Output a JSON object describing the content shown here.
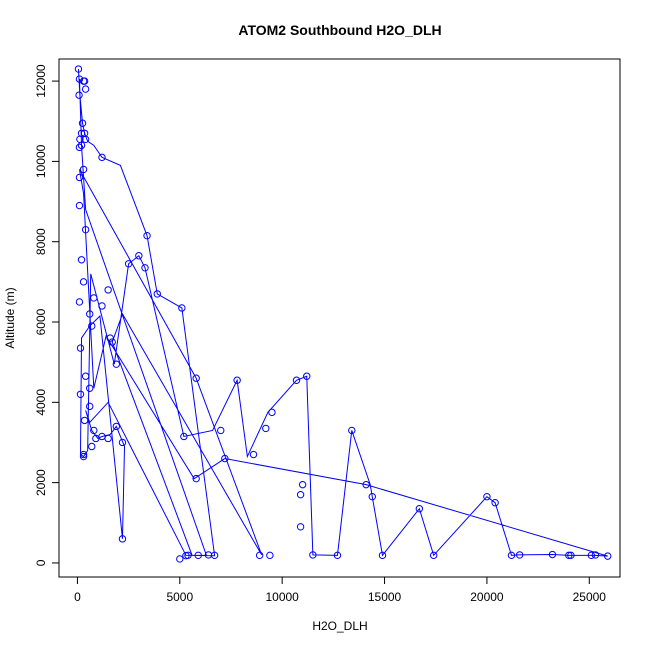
{
  "chart_data": {
    "type": "line",
    "title": "ATOM2 Southbound H2O_DLH",
    "xlabel": "H2O_DLH",
    "ylabel": "Altitude (m)",
    "xlim": [
      -900,
      26500
    ],
    "ylim": [
      -350,
      12550
    ],
    "xticks": [
      0,
      5000,
      10000,
      15000,
      20000,
      25000
    ],
    "yticks": [
      0,
      2000,
      4000,
      6000,
      8000,
      10000,
      12000
    ],
    "grid": false,
    "series": [
      {
        "color": "#0000ff",
        "markers": "open-circle",
        "x": [
          50,
          120,
          250,
          350,
          500,
          800,
          1200,
          2100,
          3400,
          3900,
          5100,
          6700,
          5300,
          1500,
          600,
          400,
          700,
          1000,
          1200,
          1600,
          1900,
          2300,
          2200,
          1100,
          900,
          600,
          200,
          150,
          300,
          500,
          650,
          1800,
          2500,
          3000,
          3300,
          5200,
          6600,
          7800,
          8300,
          9300,
          10700,
          11200,
          11500,
          12700,
          13400,
          14300,
          14400,
          14900,
          16700,
          17400,
          20000,
          20400,
          21200,
          21500,
          23200,
          24000,
          24100,
          25100,
          25300,
          25900,
          14100,
          7200,
          5700,
          1400,
          800,
          300,
          100,
          5800,
          9000,
          2200,
          1700,
          5600,
          6300,
          400,
          200,
          100
        ],
        "y": [
          12300,
          11650,
          10950,
          10700,
          10500,
          10400,
          10100,
          9900,
          8150,
          6700,
          6350,
          180,
          190,
          4000,
          3500,
          3800,
          3300,
          3100,
          3150,
          3200,
          3400,
          2900,
          600,
          6150,
          6050,
          5900,
          5600,
          2700,
          2650,
          2800,
          7200,
          4950,
          7450,
          7650,
          7350,
          3150,
          3300,
          4550,
          2650,
          3750,
          4550,
          4650,
          200,
          190,
          3300,
          1950,
          1650,
          190,
          1350,
          190,
          1650,
          1500,
          190,
          200,
          210,
          190,
          190,
          190,
          190,
          170,
          1950,
          2600,
          2100,
          5650,
          4350,
          9200,
          9800,
          4600,
          200,
          6200,
          5500,
          190,
          190,
          8800,
          10400,
          12050
        ],
        "points": [
          [
            50,
            12300
          ],
          [
            100,
            12050
          ],
          [
            300,
            12000
          ],
          [
            350,
            12000
          ],
          [
            80,
            11650
          ],
          [
            400,
            11800
          ],
          [
            250,
            10950
          ],
          [
            200,
            10700
          ],
          [
            350,
            10700
          ],
          [
            120,
            10550
          ],
          [
            400,
            10550
          ],
          [
            200,
            10400
          ],
          [
            100,
            10350
          ],
          [
            1200,
            10100
          ],
          [
            300,
            9800
          ],
          [
            100,
            9600
          ],
          [
            3400,
            8150
          ],
          [
            2500,
            7450
          ],
          [
            3000,
            7650
          ],
          [
            3300,
            7350
          ],
          [
            3900,
            6700
          ],
          [
            5100,
            6350
          ],
          [
            1200,
            6400
          ],
          [
            1500,
            6800
          ],
          [
            800,
            6600
          ],
          [
            600,
            6200
          ],
          [
            700,
            5900
          ],
          [
            1600,
            5600
          ],
          [
            1700,
            5500
          ],
          [
            1900,
            4950
          ],
          [
            5800,
            4600
          ],
          [
            7800,
            4550
          ],
          [
            10700,
            4550
          ],
          [
            11200,
            4650
          ],
          [
            9500,
            3750
          ],
          [
            9200,
            3350
          ],
          [
            7000,
            3300
          ],
          [
            5200,
            3150
          ],
          [
            13400,
            3300
          ],
          [
            7200,
            2600
          ],
          [
            8600,
            2700
          ],
          [
            5800,
            2100
          ],
          [
            14100,
            1950
          ],
          [
            14400,
            1650
          ],
          [
            10900,
            1700
          ],
          [
            11000,
            1950
          ],
          [
            16700,
            1350
          ],
          [
            20000,
            1650
          ],
          [
            20400,
            1500
          ],
          [
            10900,
            900
          ],
          [
            2200,
            600
          ],
          [
            1900,
            3400
          ],
          [
            2200,
            3000
          ],
          [
            1500,
            3100
          ],
          [
            1200,
            3150
          ],
          [
            800,
            3300
          ],
          [
            900,
            3100
          ],
          [
            700,
            2900
          ],
          [
            300,
            2700
          ],
          [
            300,
            2650
          ],
          [
            350,
            3550
          ],
          [
            600,
            3900
          ],
          [
            150,
            4200
          ],
          [
            600,
            4350
          ],
          [
            400,
            4650
          ],
          [
            150,
            5350
          ],
          [
            100,
            6500
          ],
          [
            300,
            7000
          ],
          [
            200,
            7550
          ],
          [
            400,
            8300
          ],
          [
            100,
            8900
          ],
          [
            5000,
            100
          ],
          [
            5300,
            180
          ],
          [
            5400,
            190
          ],
          [
            5900,
            190
          ],
          [
            6400,
            200
          ],
          [
            6700,
            190
          ],
          [
            8900,
            190
          ],
          [
            9400,
            190
          ],
          [
            11500,
            200
          ],
          [
            12700,
            190
          ],
          [
            14900,
            190
          ],
          [
            17400,
            190
          ],
          [
            21200,
            190
          ],
          [
            21600,
            200
          ],
          [
            23200,
            210
          ],
          [
            24000,
            190
          ],
          [
            24100,
            190
          ],
          [
            25100,
            190
          ],
          [
            25300,
            200
          ],
          [
            25900,
            170
          ]
        ]
      }
    ]
  }
}
